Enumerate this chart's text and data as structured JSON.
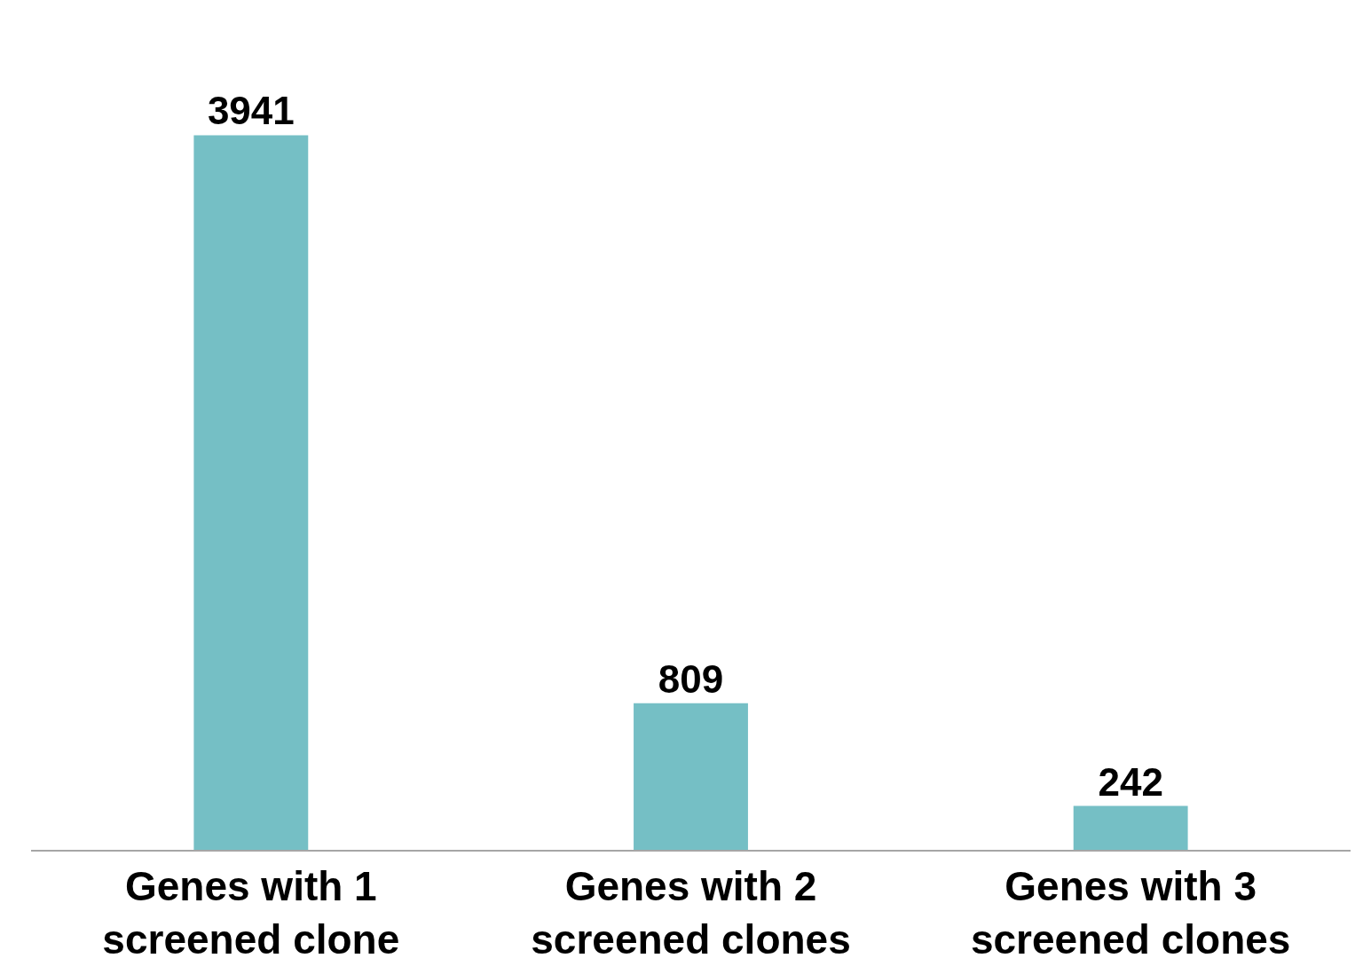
{
  "chart_data": {
    "type": "bar",
    "categories": [
      "Genes with 1\nscreened clone",
      "Genes with 2\nscreened clones",
      "Genes with 3\nscreened clones"
    ],
    "values": [
      3941,
      809,
      242
    ],
    "color": "#75bfc5",
    "data_labels": true
  }
}
